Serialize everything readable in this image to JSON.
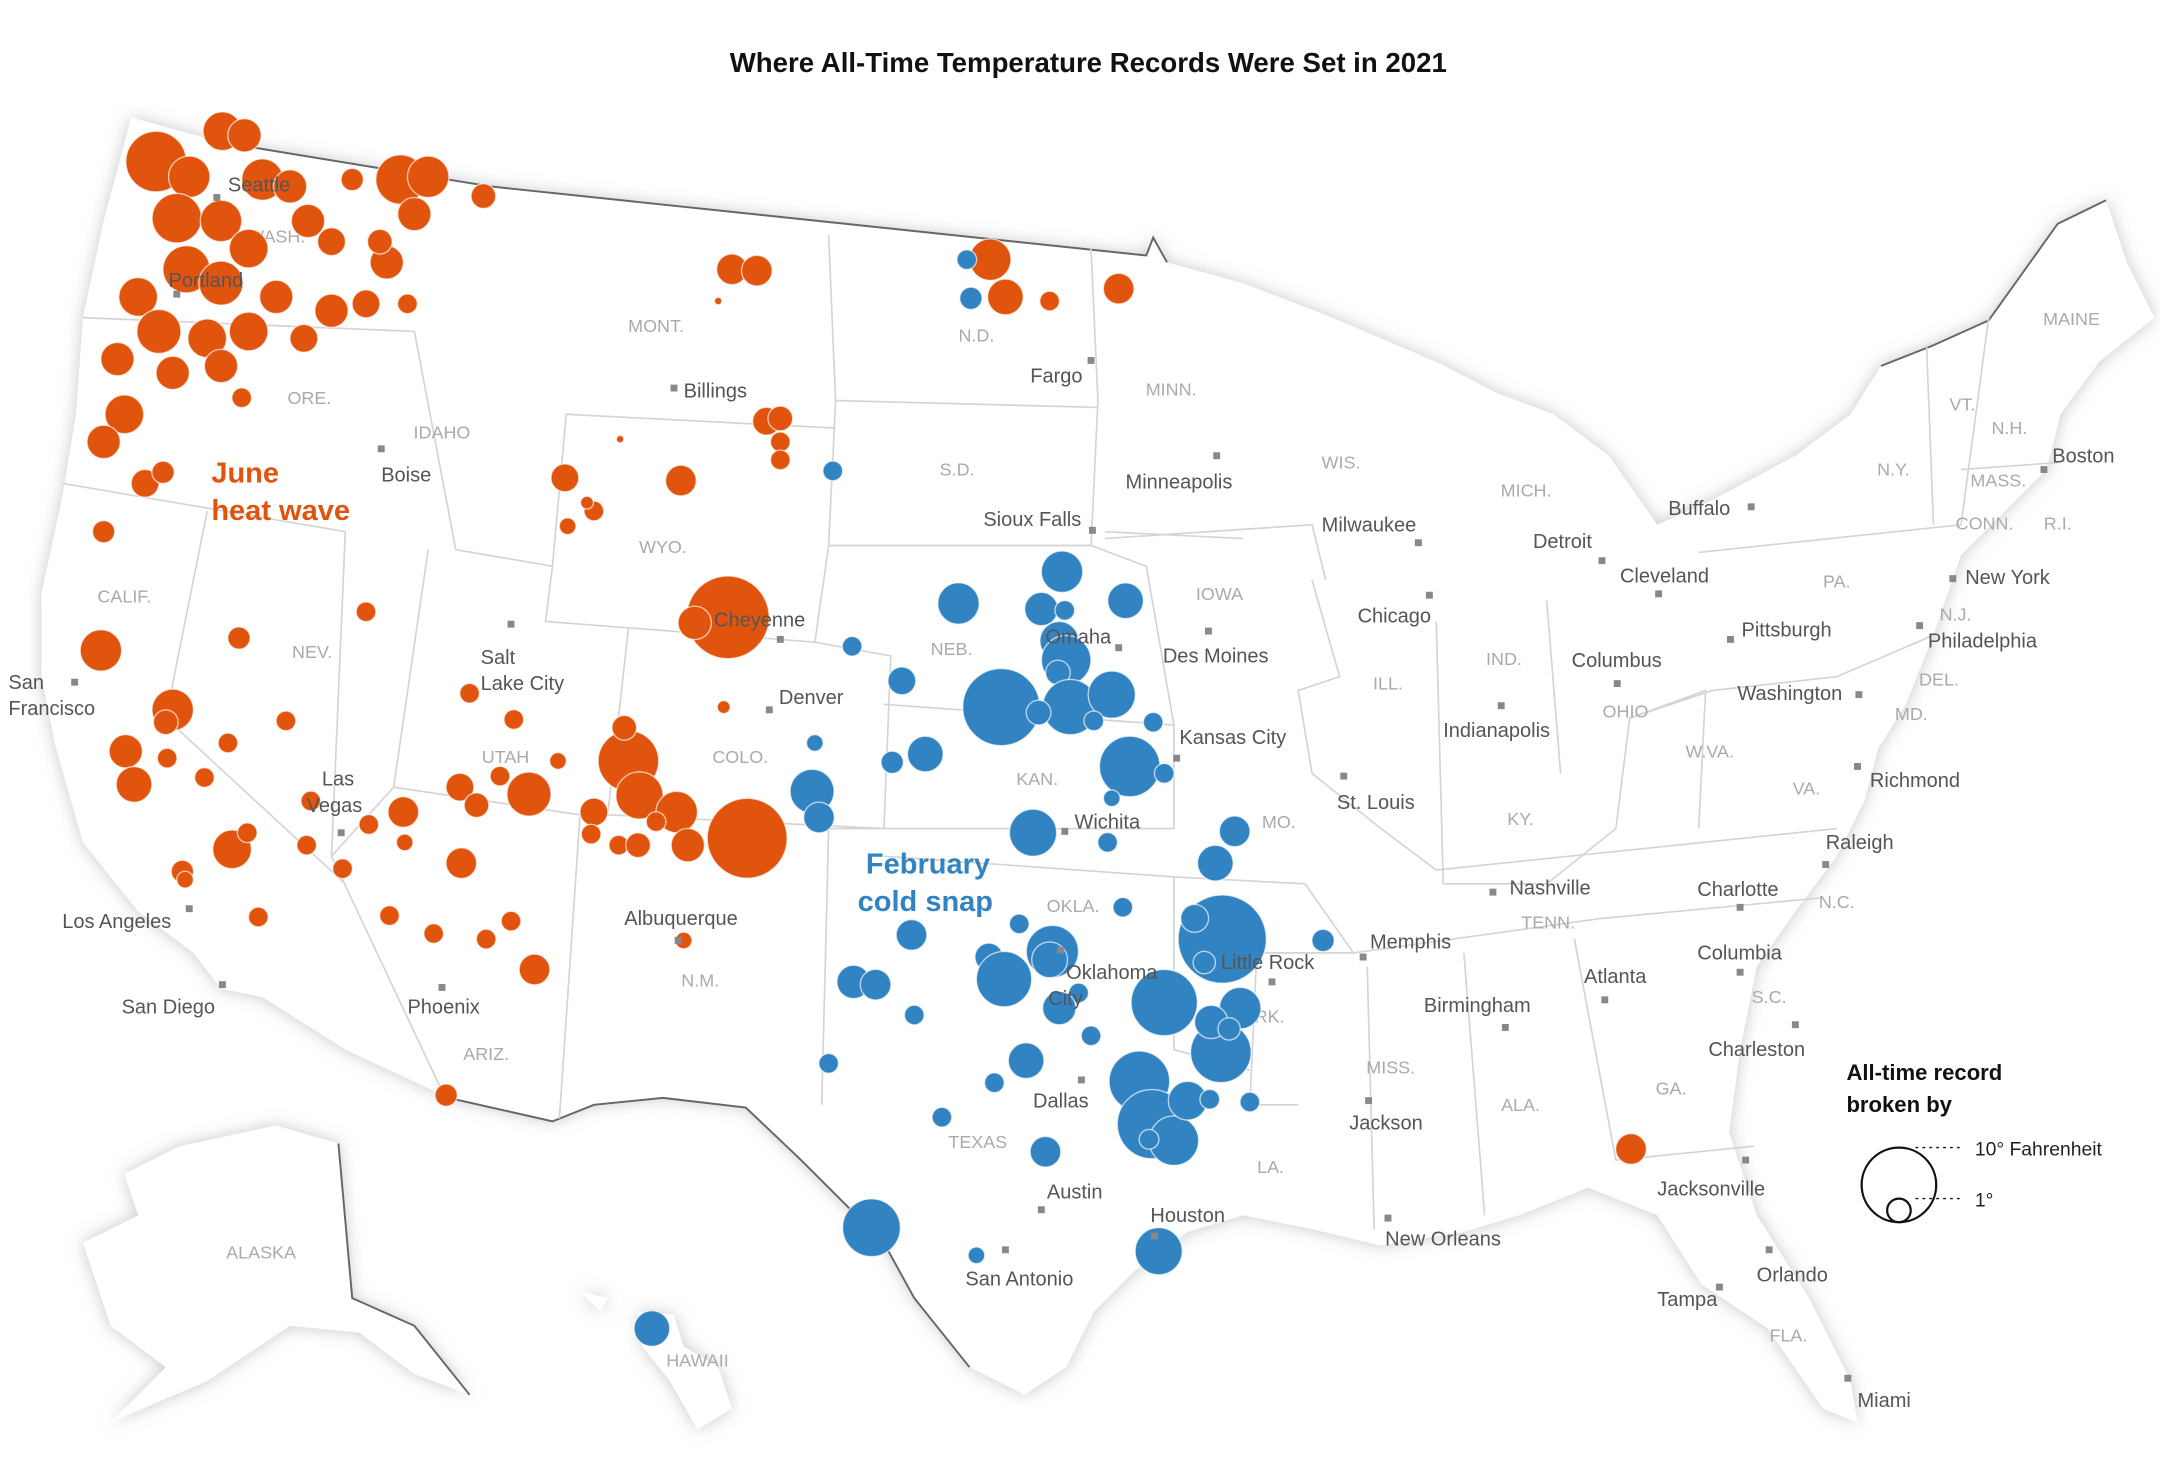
{
  "title": "Where All-Time Temperature Records Were Set in 2021",
  "heat_wave": {
    "label": [
      "June",
      "heat wave"
    ],
    "color": "#e0540e",
    "degrees": [
      6.6,
      2.7,
      2.0,
      3.1,
      4.4,
      3.1,
      3.1,
      2.0,
      2.0,
      2.7,
      4.0,
      2.7,
      3.5,
      2.0,
      2.0,
      3.5,
      2.7,
      2.7,
      1.4,
      2.0,
      2.0,
      2.0,
      2.7,
      2.0,
      1.4,
      0.9,
      0.9,
      0.7,
      4.4,
      3.1,
      2.0,
      2.0,
      1.4,
      0.7,
      0.9,
      1.1,
      1.1,
      1.4,
      1.7,
      0.1,
      1.7,
      3.1,
      2.3,
      0.7,
      1.7,
      1.4,
      1.1,
      0.7,
      0.7,
      0.1,
      1.4,
      1.7,
      0.7,
      0.3,
      0.5,
      12.3,
      2.0,
      0.3,
      3.1,
      0.7,
      0.9,
      3.1,
      1.1,
      2.0,
      2.3,
      0.7,
      0.7,
      0.7,
      0.7,
      0.7,
      2.7,
      0.7,
      0.9,
      0.5,
      0.7,
      0.7,
      0.7,
      1.7,
      0.5,
      1.7,
      0.7,
      0.7,
      0.5,
      3.5,
      1.4,
      1.1,
      0.7,
      6.6,
      4.0,
      1.1,
      3.1,
      1.4,
      0.7,
      0.7,
      1.1,
      2.0,
      11.5,
      0.7,
      0.7,
      0.7,
      0.7,
      0.7,
      0.7,
      1.7,
      0.5,
      0.9,
      1.7
    ]
  },
  "cold_snap": {
    "label": [
      "February",
      "cold snap"
    ],
    "color": "#3283c2",
    "degrees": [
      0.7,
      0.9,
      0.7,
      3.1,
      3.1,
      2.0,
      2.3,
      0.7,
      0.7,
      2.7,
      4.4,
      1.1,
      10.7,
      5.5,
      4.0,
      0.7,
      0.7,
      1.1,
      1.4,
      2.3,
      0.9,
      0.5,
      3.5,
      1.7,
      6.6,
      0.7,
      0.5,
      4.0,
      0.7,
      1.7,
      2.3,
      0.7,
      14.0,
      1.4,
      0.9,
      3.1,
      6.6,
      0.9,
      7.9,
      2.0,
      0.9,
      1.7,
      0.7,
      4.9,
      2.3,
      1.4,
      5.5,
      0.7,
      2.0,
      2.0,
      1.7,
      0.7,
      0.7,
      2.3,
      0.7,
      6.6,
      8.6,
      4.4,
      2.7,
      0.7,
      0.7,
      0.7,
      0.7,
      1.7,
      0.7,
      6.0,
      4.0,
      0.5,
      2.3
    ]
  },
  "legend": {
    "title": [
      "All-time record",
      "broken by"
    ],
    "sizes": [
      {
        "value": 10,
        "label": "10° Fahrenheit"
      },
      {
        "value": 1,
        "label": "1°"
      }
    ]
  },
  "cities": [
    [
      "Seattle"
    ],
    [
      "Portland"
    ],
    [
      "Boise"
    ],
    [
      "Billings"
    ],
    [
      "Fargo"
    ],
    [
      "Minneapolis"
    ],
    [
      "Sioux Falls"
    ],
    [
      "Milwaukee"
    ],
    [
      "Detroit"
    ],
    [
      "Buffalo"
    ],
    [
      "Boston"
    ],
    [
      "Cleveland"
    ],
    [
      "New York"
    ],
    [
      "Chicago"
    ],
    [
      "Pittsburgh"
    ],
    [
      "Philadelphia"
    ],
    [
      "Des Moines"
    ],
    [
      "Omaha"
    ],
    [
      "Cheyenne"
    ],
    [
      "Salt",
      "Lake City"
    ],
    [
      "Denver"
    ],
    [
      "Columbus"
    ],
    [
      "Washington"
    ],
    [
      "Indianapolis"
    ],
    [
      "Kansas City"
    ],
    [
      "San",
      "Francisco"
    ],
    [
      "Las",
      "Vegas"
    ],
    [
      "St. Louis"
    ],
    [
      "Richmond"
    ],
    [
      "Wichita"
    ],
    [
      "Raleigh"
    ],
    [
      "Nashville"
    ],
    [
      "Charlotte"
    ],
    [
      "Los Angeles"
    ],
    [
      "Albuquerque"
    ],
    [
      "Memphis"
    ],
    [
      "Little Rock"
    ],
    [
      "Oklahoma",
      "City"
    ],
    [
      "Columbia"
    ],
    [
      "Atlanta"
    ],
    [
      "San Diego"
    ],
    [
      "Phoenix"
    ],
    [
      "Birmingham"
    ],
    [
      "Charleston"
    ],
    [
      "Dallas"
    ],
    [
      "Jackson"
    ],
    [
      "Jacksonville"
    ],
    [
      "Austin"
    ],
    [
      "Houston"
    ],
    [
      "New Orleans"
    ],
    [
      "San Antonio"
    ],
    [
      "Orlando"
    ],
    [
      "Tampa"
    ],
    [
      "Miami"
    ]
  ],
  "states": [
    "MONT.",
    "N.D.",
    "MINN.",
    "ORE.",
    "IDAHO",
    "WIS.",
    "WASH.",
    "S.D.",
    "MICH.",
    "N.Y.",
    "VT.",
    "N.H.",
    "MAINE",
    "MASS.",
    "CONN.",
    "R.I.",
    "WYO.",
    "CALIF.",
    "IOWA",
    "PA.",
    "N.J.",
    "NEB.",
    "NEV.",
    "ILL.",
    "IND.",
    "OHIO",
    "DEL.",
    "MD.",
    "UTAH",
    "COLO.",
    "KAN.",
    "W.VA.",
    "VA.",
    "KY.",
    "MO.",
    "OKLA.",
    "TENN.",
    "N.C.",
    "N.M.",
    "ARK.",
    "S.C.",
    "ARIZ.",
    "MISS.",
    "ALA.",
    "GA.",
    "LA.",
    "TEXAS",
    "FLA.",
    "ALASKA",
    "HAWAII"
  ]
}
